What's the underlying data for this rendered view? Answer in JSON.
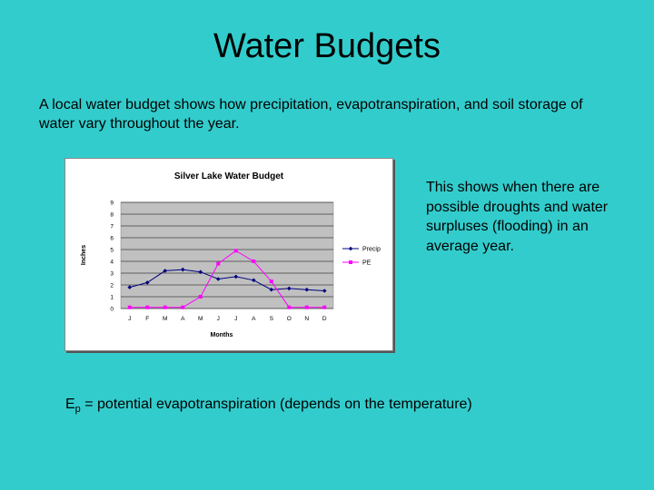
{
  "slide": {
    "title": "Water Budgets",
    "intro": "A local water budget shows how precipitation, evapotranspiration, and soil storage of water vary throughout the year.",
    "side_note": "This shows when there are possible droughts and water surpluses (flooding) in an average year.",
    "footnote_symbol": "E",
    "footnote_subscript": "p",
    "footnote_text": " = potential evapotranspiration (depends on the temperature)"
  },
  "chart_data": {
    "type": "line",
    "title": "Silver Lake Water Budget",
    "xlabel": "Months",
    "ylabel": "Inches",
    "categories": [
      "J",
      "F",
      "M",
      "A",
      "M",
      "J",
      "J",
      "A",
      "S",
      "O",
      "N",
      "D"
    ],
    "ylim": [
      0,
      9
    ],
    "yticks": [
      "0",
      "1",
      "2",
      "3",
      "4",
      "5",
      "6",
      "7",
      "8",
      "9"
    ],
    "grid": true,
    "legend_position": "right",
    "series": [
      {
        "name": "Precip",
        "color": "#000080",
        "marker": "diamond",
        "values": [
          1.8,
          2.2,
          3.2,
          3.3,
          3.1,
          2.5,
          2.7,
          2.4,
          1.6,
          1.7,
          1.6,
          1.5
        ]
      },
      {
        "name": "PE",
        "color": "#FF00FF",
        "marker": "square",
        "values": [
          0.1,
          0.1,
          0.1,
          0.1,
          1.0,
          3.8,
          4.9,
          4.0,
          2.3,
          0.1,
          0.1,
          0.1
        ]
      }
    ],
    "plot_background": "#C0C0C0"
  }
}
